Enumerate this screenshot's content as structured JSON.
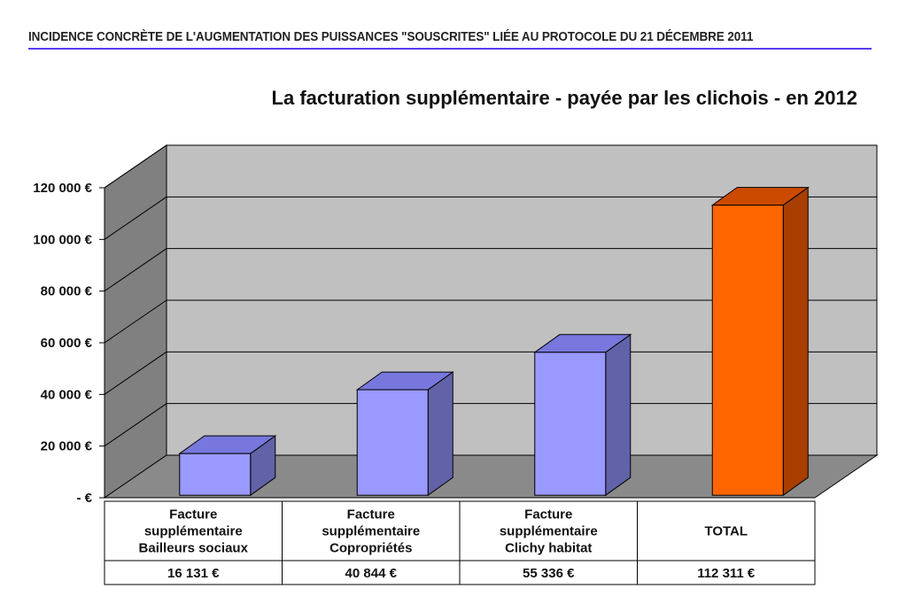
{
  "header": {
    "text": "INCIDENCE CONCRÈTE DE L'AUGMENTATION DES PUISSANCES \"SOUSCRITES\" LIÉE AU PROTOCOLE DU 21 DÉCEMBRE 2011"
  },
  "chart_data": {
    "type": "bar",
    "title": "La facturation supplémentaire - payée par les clichois - en 2012",
    "categories": [
      [
        "Facture",
        "supplémentaire",
        "Bailleurs sociaux"
      ],
      [
        "Facture",
        "supplémentaire",
        "Copropriétés"
      ],
      [
        "Facture",
        "supplémentaire",
        "Clichy habitat"
      ],
      [
        "TOTAL"
      ]
    ],
    "values": [
      16131,
      40844,
      55336,
      112311
    ],
    "value_labels": [
      "16 131 €",
      "40 844 €",
      "55 336 €",
      "112 311 €"
    ],
    "ylim": [
      0,
      120000
    ],
    "yticks": [
      0,
      20000,
      40000,
      60000,
      80000,
      100000,
      120000
    ],
    "ytick_labels": [
      "-  €",
      "20 000 €",
      "40 000 €",
      "60 000 €",
      "80 000 €",
      "100 000 €",
      "120 000 €"
    ],
    "grid": true,
    "three_d": true,
    "colors": {
      "bar_front": "#9999ff",
      "bar_top": "#7777dd",
      "bar_side": "#6262a8",
      "total_front": "#ff6600",
      "total_top": "#cc4a00",
      "total_side": "#a83e00",
      "wall_back": "#c0c0c0",
      "wall_side": "#808080",
      "floor": "#8a8a8a"
    }
  }
}
